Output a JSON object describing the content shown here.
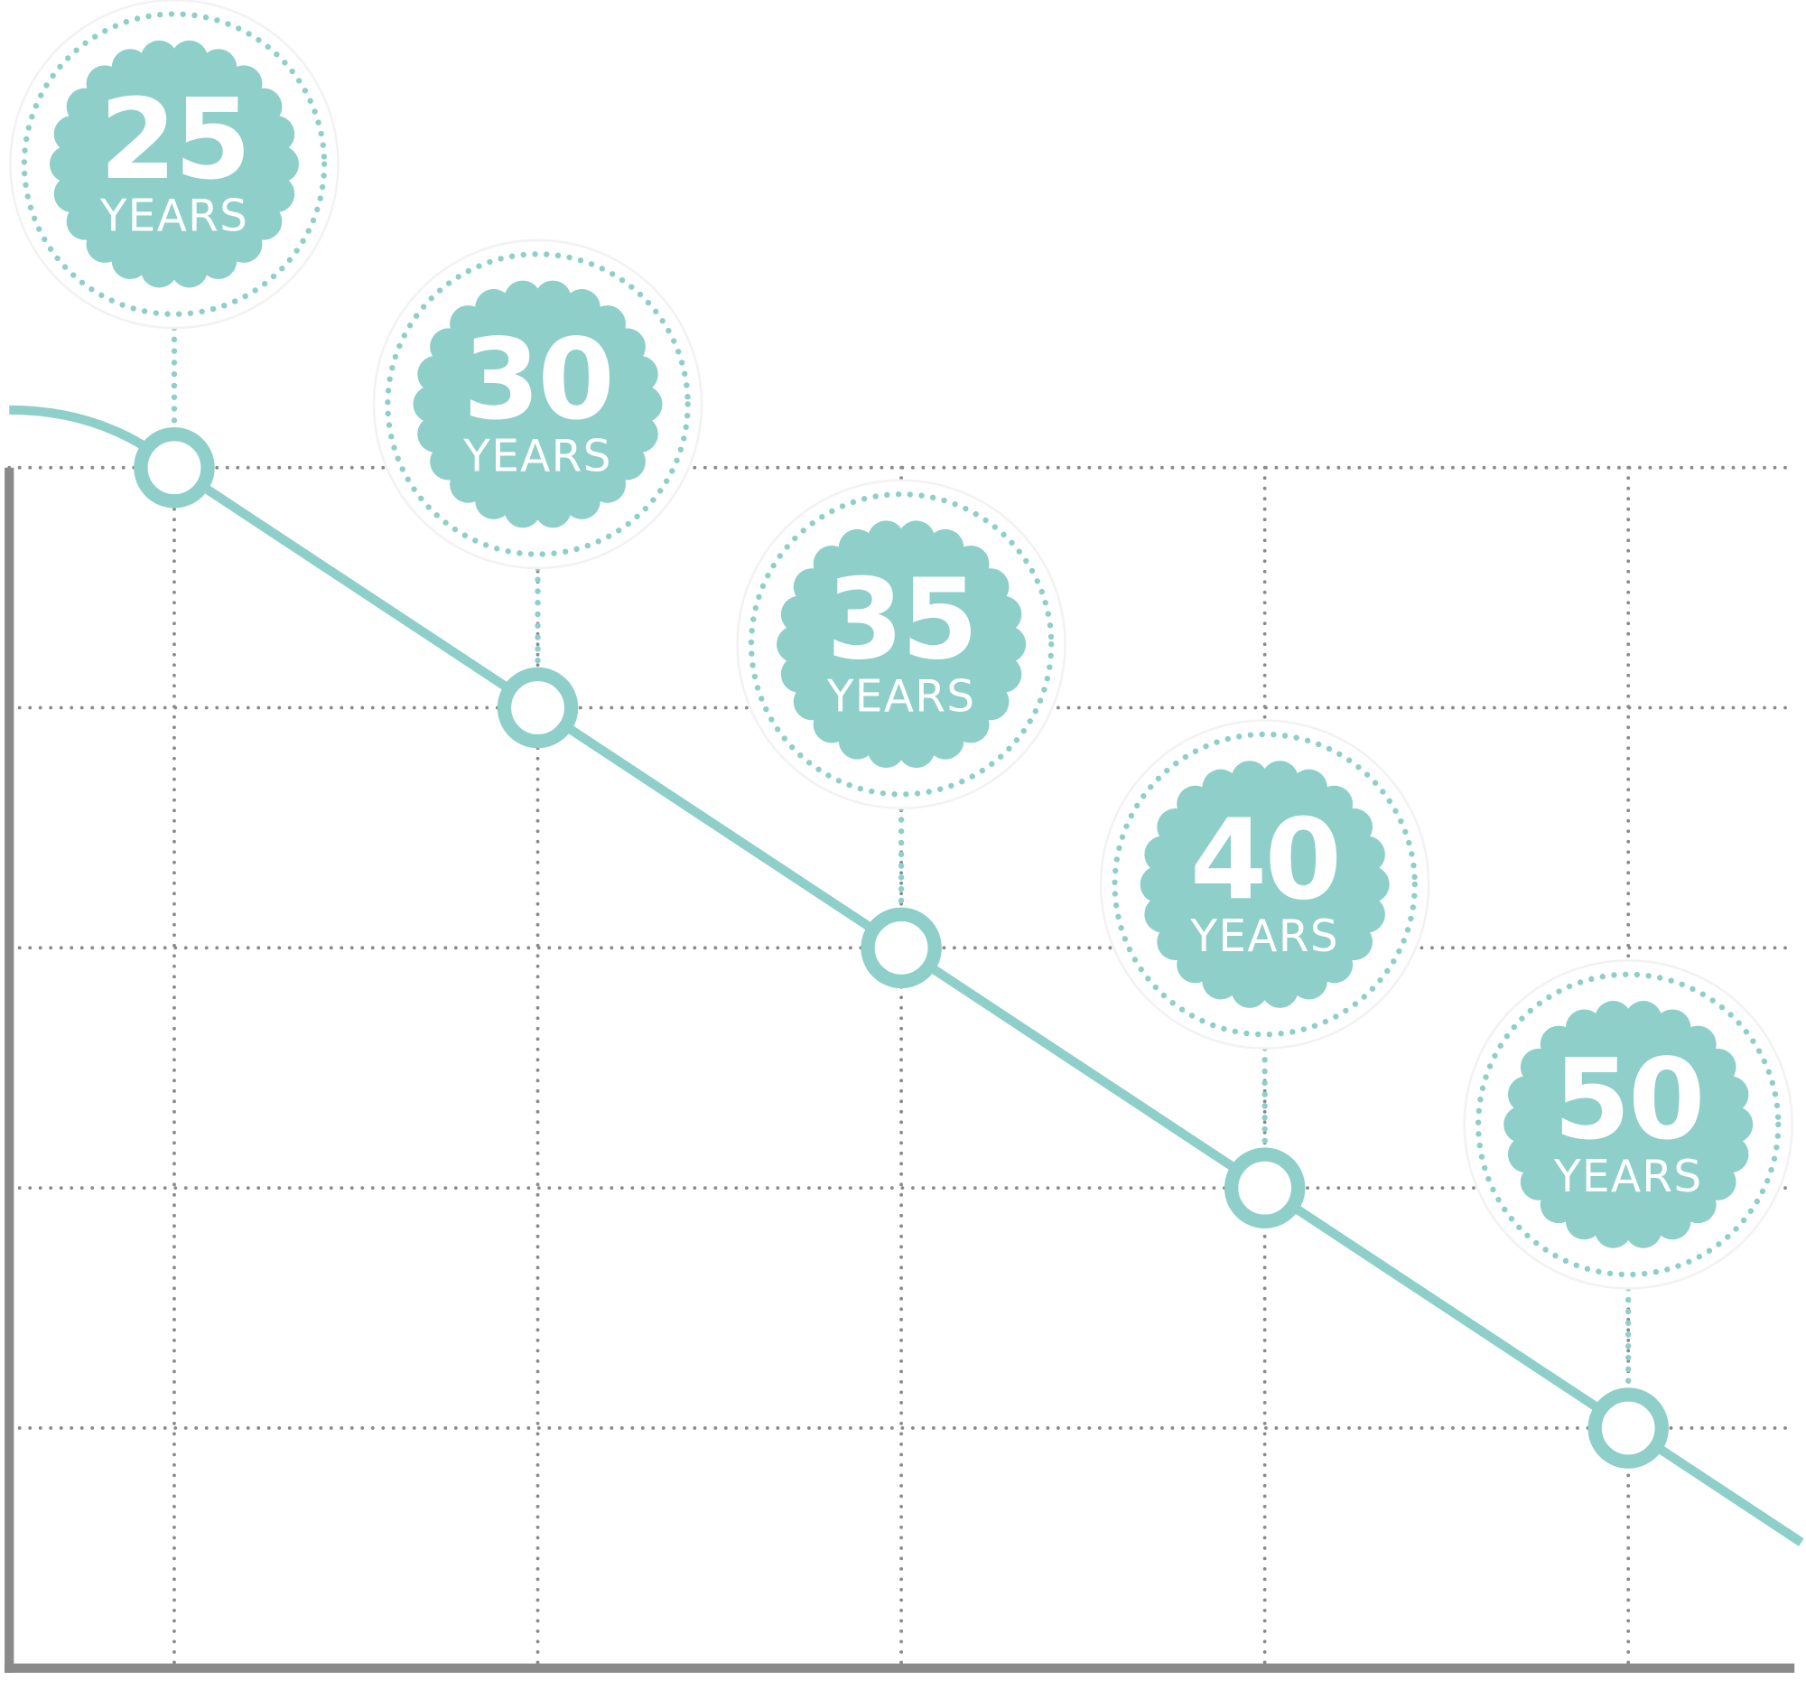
{
  "chart_data": {
    "type": "line",
    "categories": [
      "25",
      "30",
      "35",
      "40",
      "50"
    ],
    "unit_label": "YEARS",
    "values": [
      5,
      4,
      3,
      2,
      1
    ],
    "ylim": [
      0,
      5
    ],
    "yticks": [
      1,
      2,
      3,
      4,
      5
    ],
    "grid": true,
    "color": "#8ecfc9"
  }
}
